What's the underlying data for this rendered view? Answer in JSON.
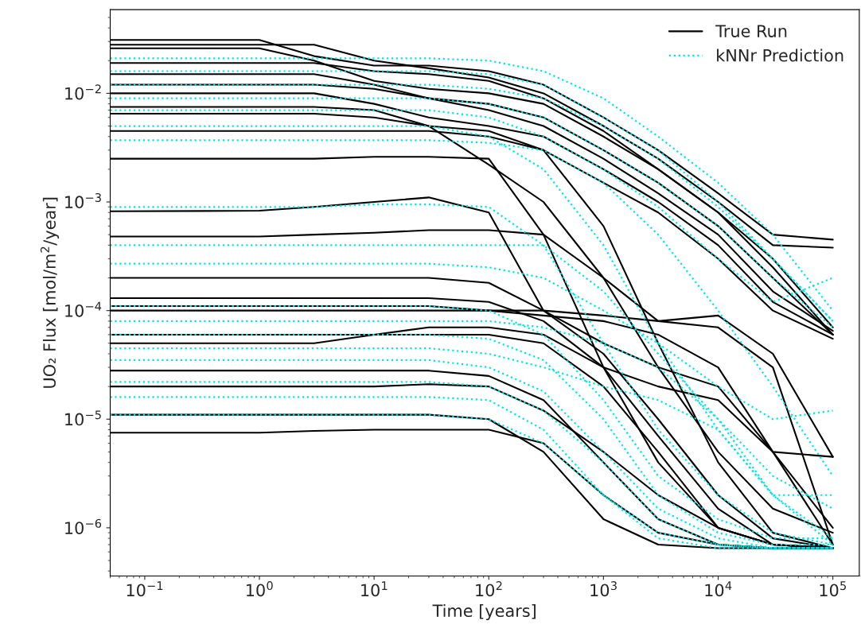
{
  "chart_data": {
    "type": "line",
    "xlabel": "Time [years]",
    "ylabel": "UO₂ Flux [mol/m$^{2}$/year]",
    "log": "xy",
    "legend": "top right",
    "grid": false,
    "xlim": [
      0.05,
      170000
    ],
    "ylim": [
      3.6e-07,
      0.059
    ],
    "xticks": [
      {
        "value": 0.1,
        "label": "10$^{−1}$"
      },
      {
        "value": 1,
        "label": "10$^{0}$"
      },
      {
        "value": 10,
        "label": "10$^{1}$"
      },
      {
        "value": 100,
        "label": "10$^{2}$"
      },
      {
        "value": 1000,
        "label": "10$^{3}$"
      },
      {
        "value": 10000,
        "label": "10$^{4}$"
      },
      {
        "value": 100000,
        "label": "10$^{5}$"
      }
    ],
    "yticks": [
      {
        "value": 1e-06,
        "label": "10$^{−6}$"
      },
      {
        "value": 1e-05,
        "label": "10$^{−5}$"
      },
      {
        "value": 0.0001,
        "label": "10$^{−4}$"
      },
      {
        "value": 0.001,
        "label": "10$^{−3}$"
      },
      {
        "value": 0.01,
        "label": "10$^{−2}$"
      }
    ],
    "x": [
      0.05,
      1,
      3,
      10,
      30,
      100,
      300,
      1000,
      3000,
      10000,
      30000,
      100000
    ],
    "series": [
      {
        "name": "True Run",
        "color": "#000000",
        "line_style": "solid",
        "values": [
          0.031,
          0.031,
          0.022,
          0.018,
          0.018,
          0.016,
          0.012,
          0.006,
          0.003,
          0.0012,
          0.0005,
          0.00045
        ]
      },
      {
        "color": "#000000",
        "line_style": "solid",
        "values": [
          0.028,
          0.028,
          0.028,
          0.02,
          0.017,
          0.014,
          0.01,
          0.005,
          0.0025,
          0.001,
          0.0004,
          0.00038
        ]
      },
      {
        "color": "#000000",
        "line_style": "solid",
        "values": [
          0.026,
          0.026,
          0.02,
          0.013,
          0.011,
          0.01,
          0.008,
          0.004,
          0.002,
          0.0008,
          0.0003,
          7e-05
        ]
      },
      {
        "color": "#000000",
        "line_style": "solid",
        "values": [
          0.019,
          0.019,
          0.019,
          0.016,
          0.015,
          0.013,
          0.009,
          0.0045,
          0.002,
          0.0008,
          0.00025,
          6e-05
        ]
      },
      {
        "color": "#000000",
        "line_style": "solid",
        "values": [
          0.015,
          0.015,
          0.015,
          0.012,
          0.009,
          0.008,
          0.006,
          0.003,
          0.0015,
          0.0006,
          0.0002,
          6e-05
        ]
      },
      {
        "color": "#000000",
        "line_style": "solid",
        "values": [
          0.012,
          0.012,
          0.012,
          0.011,
          0.009,
          0.007,
          0.005,
          0.0025,
          0.0012,
          0.0005,
          0.00015,
          6.5e-05
        ]
      },
      {
        "color": "#000000",
        "line_style": "solid",
        "values": [
          0.01,
          0.01,
          0.01,
          0.008,
          0.006,
          0.005,
          0.004,
          0.002,
          0.001,
          0.0004,
          0.00012,
          6e-05
        ]
      },
      {
        "color": "#000000",
        "line_style": "solid",
        "values": [
          0.0075,
          0.0075,
          0.0075,
          0.007,
          0.005,
          0.0045,
          0.003,
          0.0015,
          0.0008,
          0.0003,
          0.0001,
          5.5e-05
        ]
      },
      {
        "color": "#000000",
        "line_style": "solid",
        "values": [
          0.0065,
          0.0065,
          0.0065,
          0.006,
          0.005,
          0.0022,
          0.001,
          0.0002,
          3e-05,
          5e-06,
          1.5e-06,
          9e-07
        ]
      },
      {
        "color": "#000000",
        "line_style": "solid",
        "values": [
          0.0045,
          0.0045,
          0.0045,
          0.0045,
          0.0045,
          0.004,
          0.003,
          0.0006,
          5e-05,
          4e-06,
          9e-07,
          6.5e-07
        ]
      },
      {
        "color": "#000000",
        "line_style": "solid",
        "values": [
          0.0025,
          0.0025,
          0.0025,
          0.0026,
          0.0026,
          0.0025,
          0.0005,
          3e-05,
          4e-06,
          1e-06,
          7e-07,
          6.5e-07
        ]
      },
      {
        "color": "#000000",
        "line_style": "solid",
        "values": [
          0.00082,
          0.00083,
          0.0009,
          0.001,
          0.0011,
          0.0008,
          0.0001,
          5e-05,
          3e-05,
          2e-05,
          5e-06,
          7e-07
        ]
      },
      {
        "color": "#000000",
        "line_style": "solid",
        "values": [
          0.00048,
          0.00048,
          0.0005,
          0.00052,
          0.00055,
          0.00055,
          0.0005,
          0.0002,
          8e-05,
          9e-05,
          4e-05,
          4.5e-06
        ]
      },
      {
        "color": "#000000",
        "line_style": "solid",
        "values": [
          0.0002,
          0.0002,
          0.0002,
          0.0002,
          0.0002,
          0.00018,
          0.0001,
          4e-05,
          1e-05,
          2e-06,
          8e-07,
          6.5e-07
        ]
      },
      {
        "color": "#000000",
        "line_style": "solid",
        "values": [
          0.00013,
          0.00013,
          0.00013,
          0.00013,
          0.00013,
          0.00012,
          8e-05,
          3e-05,
          7e-06,
          1.5e-06,
          7e-07,
          6.5e-07
        ]
      },
      {
        "color": "#000000",
        "line_style": "solid",
        "values": [
          0.00011,
          0.00011,
          0.00011,
          0.00011,
          0.00011,
          0.0001,
          9e-05,
          8e-05,
          6e-05,
          3e-05,
          5e-06,
          1e-06
        ]
      },
      {
        "color": "#000000",
        "line_style": "solid",
        "values": [
          0.0001,
          0.0001,
          0.0001,
          0.0001,
          0.0001,
          0.0001,
          0.0001,
          9e-05,
          8e-05,
          7e-05,
          3e-05,
          7e-07
        ]
      },
      {
        "color": "#000000",
        "line_style": "solid",
        "values": [
          6e-05,
          6e-05,
          6e-05,
          6e-05,
          6e-05,
          6e-05,
          5e-05,
          2e-05,
          5e-06,
          1e-06,
          7e-07,
          6.5e-07
        ]
      },
      {
        "color": "#000000",
        "line_style": "solid",
        "values": [
          5e-05,
          5e-05,
          5e-05,
          6e-05,
          7e-05,
          7e-05,
          6e-05,
          3e-05,
          2e-05,
          1.5e-05,
          5e-06,
          4.5e-06
        ]
      },
      {
        "color": "#000000",
        "line_style": "solid",
        "values": [
          2.8e-05,
          2.8e-05,
          2.8e-05,
          2.8e-05,
          2.8e-05,
          2.5e-05,
          1.5e-05,
          4e-06,
          1.2e-06,
          7e-07,
          6.5e-07,
          6.5e-07
        ]
      },
      {
        "color": "#000000",
        "line_style": "solid",
        "values": [
          2e-05,
          2e-05,
          2e-05,
          2e-05,
          2.1e-05,
          2e-05,
          1.2e-05,
          5e-06,
          2e-06,
          1e-06,
          7e-07,
          6.5e-07
        ]
      },
      {
        "color": "#000000",
        "line_style": "solid",
        "values": [
          1.1e-05,
          1.1e-05,
          1.1e-05,
          1.1e-05,
          1.1e-05,
          1e-05,
          5e-06,
          1.2e-06,
          7e-07,
          6.5e-07,
          6.5e-07,
          6.5e-07
        ]
      },
      {
        "color": "#000000",
        "line_style": "solid",
        "values": [
          7.5e-06,
          7.5e-06,
          7.8e-06,
          8e-06,
          8e-06,
          8e-06,
          6e-06,
          2e-06,
          9e-07,
          7e-07,
          6.5e-07,
          6.5e-07
        ]
      },
      {
        "name": "kNNr Prediction",
        "color": "#00e5e5",
        "line_style": "dotted",
        "values": [
          0.021,
          0.021,
          0.021,
          0.021,
          0.021,
          0.02,
          0.016,
          0.009,
          0.004,
          0.0015,
          0.0005,
          0.0001
        ]
      },
      {
        "color": "#00e5e5",
        "line_style": "dotted",
        "values": [
          0.016,
          0.016,
          0.016,
          0.016,
          0.016,
          0.015,
          0.012,
          0.006,
          0.003,
          0.001,
          0.0003,
          8e-05
        ]
      },
      {
        "color": "#00e5e5",
        "line_style": "dotted",
        "values": [
          0.012,
          0.012,
          0.012,
          0.012,
          0.012,
          0.011,
          0.009,
          0.005,
          0.0025,
          0.0009,
          0.0003,
          8e-05
        ]
      },
      {
        "color": "#00e5e5",
        "line_style": "dotted",
        "values": [
          0.009,
          0.009,
          0.009,
          0.009,
          0.009,
          0.008,
          0.006,
          0.003,
          0.0015,
          0.0006,
          0.0002,
          7e-05
        ]
      },
      {
        "color": "#00e5e5",
        "line_style": "dotted",
        "values": [
          0.007,
          0.007,
          0.007,
          0.007,
          0.007,
          0.006,
          0.004,
          0.002,
          0.0009,
          0.0003,
          0.00012,
          0.0002
        ]
      },
      {
        "color": "#00e5e5",
        "line_style": "dotted",
        "values": [
          0.005,
          0.005,
          0.005,
          0.005,
          0.005,
          0.004,
          0.002,
          0.0004,
          5e-05,
          8e-06,
          2e-06,
          8e-07
        ]
      },
      {
        "color": "#00e5e5",
        "line_style": "dotted",
        "values": [
          0.0037,
          0.0037,
          0.0037,
          0.0037,
          0.0037,
          0.0035,
          0.003,
          0.0015,
          0.0005,
          0.0001,
          2e-05,
          3e-06
        ]
      },
      {
        "color": "#00e5e5",
        "line_style": "dotted",
        "values": [
          0.0009,
          0.0009,
          0.0009,
          0.00095,
          0.00095,
          0.0009,
          0.0004,
          5e-05,
          8e-06,
          2e-06,
          9e-07,
          7e-07
        ]
      },
      {
        "color": "#00e5e5",
        "line_style": "dotted",
        "values": [
          0.0004,
          0.0004,
          0.0004,
          0.0004,
          0.0004,
          0.0004,
          0.0004,
          0.00015,
          4e-05,
          1e-05,
          3e-06,
          1.5e-06
        ]
      },
      {
        "color": "#00e5e5",
        "line_style": "dotted",
        "values": [
          0.00027,
          0.00027,
          0.00027,
          0.00027,
          0.00027,
          0.00025,
          0.0002,
          0.0001,
          5e-05,
          2e-05,
          1e-05,
          1.2e-05
        ]
      },
      {
        "color": "#00e5e5",
        "line_style": "dotted",
        "values": [
          0.00011,
          0.00011,
          0.00011,
          0.00011,
          0.00011,
          0.0001,
          6e-05,
          1.5e-05,
          3e-06,
          1.2e-06,
          8e-07,
          8e-07
        ]
      },
      {
        "color": "#00e5e5",
        "line_style": "dotted",
        "values": [
          8e-05,
          8e-05,
          8e-05,
          8e-05,
          8e-05,
          8e-05,
          7e-05,
          5e-05,
          3e-05,
          1e-05,
          2e-06,
          7e-07
        ]
      },
      {
        "color": "#00e5e5",
        "line_style": "dotted",
        "values": [
          6e-05,
          6e-05,
          6e-05,
          6e-05,
          6e-05,
          5.5e-05,
          3.5e-05,
          1e-05,
          2e-06,
          9e-07,
          7e-07,
          7e-07
        ]
      },
      {
        "color": "#00e5e5",
        "line_style": "dotted",
        "values": [
          4.5e-05,
          4.5e-05,
          4.5e-05,
          4.5e-05,
          4.5e-05,
          4e-05,
          3e-05,
          2e-05,
          1.5e-05,
          8e-06,
          2e-06,
          2e-06
        ]
      },
      {
        "color": "#00e5e5",
        "line_style": "dotted",
        "values": [
          3.5e-05,
          3.5e-05,
          3.5e-05,
          3.5e-05,
          3.5e-05,
          3e-05,
          1.8e-05,
          5e-06,
          1.5e-06,
          8e-07,
          6.5e-07,
          6.5e-07
        ]
      },
      {
        "color": "#00e5e5",
        "line_style": "dotted",
        "values": [
          2.2e-05,
          2.2e-05,
          2.2e-05,
          2.2e-05,
          2.2e-05,
          2e-05,
          1.2e-05,
          4e-06,
          1.2e-06,
          7e-07,
          6.5e-07,
          6.5e-07
        ]
      },
      {
        "color": "#00e5e5",
        "line_style": "dotted",
        "values": [
          1.6e-05,
          1.6e-05,
          1.6e-05,
          1.6e-05,
          1.6e-05,
          1.5e-05,
          8e-06,
          2e-06,
          8e-07,
          6.5e-07,
          6.5e-07,
          6.5e-07
        ]
      },
      {
        "color": "#00e5e5",
        "line_style": "dotted",
        "values": [
          1.1e-05,
          1.1e-05,
          1.1e-05,
          1.1e-05,
          1.1e-05,
          1e-05,
          6e-06,
          2e-06,
          9e-07,
          7e-07,
          6.5e-07,
          6.5e-07
        ]
      }
    ]
  }
}
